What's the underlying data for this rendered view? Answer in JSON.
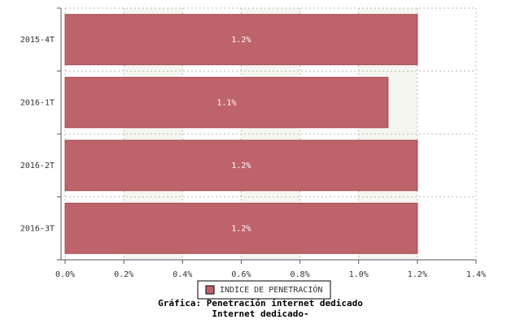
{
  "chart_data": {
    "type": "barh",
    "title": "Gráfica: Penetración internet dedicado",
    "subtitle": "Internet dedicado-",
    "categories": [
      "2015-4T",
      "2016-1T",
      "2016-2T",
      "2016-3T"
    ],
    "series": [
      {
        "name": "INDICE DE PENETRACIÓN",
        "color": "#bf636b",
        "values": [
          1.2,
          1.1,
          1.2,
          1.2
        ],
        "value_labels": [
          "1.2%",
          "1.1%",
          "1.2%",
          "1.2%"
        ]
      }
    ],
    "xlim": [
      0,
      1.4
    ],
    "xticks": [
      {
        "value": 0,
        "label": "0.0%"
      },
      {
        "value": 0.2,
        "label": "0.2%"
      },
      {
        "value": 0.4,
        "label": "0.4%"
      },
      {
        "value": 0.6,
        "label": "0.6%"
      },
      {
        "value": 0.8,
        "label": "0.8%"
      },
      {
        "value": 1.0,
        "label": "1.0%"
      },
      {
        "value": 1.2,
        "label": "1.2%"
      },
      {
        "value": 1.4,
        "label": "1.4%"
      }
    ],
    "grid": true
  }
}
